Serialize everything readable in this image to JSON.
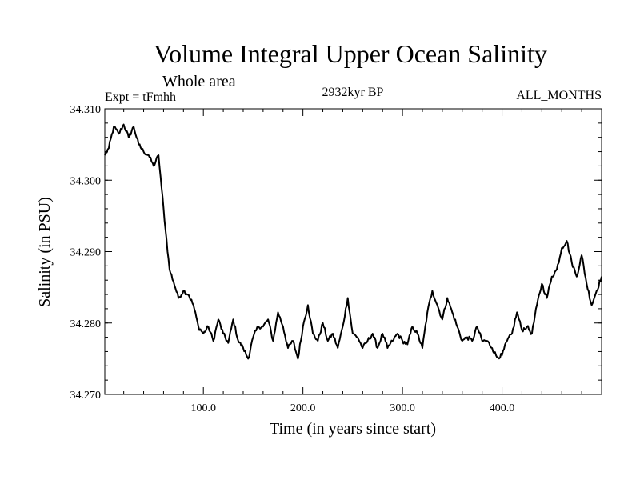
{
  "chart_data": {
    "type": "line",
    "title": "Volume Integral Upper Ocean Salinity",
    "subtitle": "Whole area",
    "experiment": "Expt = tFmhh",
    "period": "2932kyr BP",
    "months": "ALL_MONTHS",
    "xlabel": "Time (in years since start)",
    "ylabel": "Salinity (in PSU)",
    "xlim": [
      1,
      500
    ],
    "ylim": [
      34.27,
      34.31
    ],
    "x_ticks": [
      100,
      200,
      300,
      400
    ],
    "x_tick_labels": [
      "100.0",
      "200.0",
      "300.0",
      "400.0"
    ],
    "y_ticks": [
      34.27,
      34.28,
      34.29,
      34.3,
      34.31
    ],
    "y_tick_labels": [
      "34.270",
      "34.280",
      "34.290",
      "34.300",
      "34.310"
    ],
    "series": [
      {
        "name": "Salinity",
        "color": "#000000",
        "x": [
          1,
          5,
          10,
          15,
          20,
          25,
          30,
          35,
          40,
          45,
          50,
          55,
          58,
          62,
          66,
          70,
          75,
          80,
          85,
          90,
          95,
          100,
          105,
          110,
          115,
          120,
          125,
          130,
          135,
          140,
          145,
          150,
          155,
          160,
          165,
          170,
          175,
          180,
          185,
          190,
          195,
          200,
          205,
          210,
          215,
          220,
          225,
          230,
          235,
          240,
          245,
          250,
          255,
          260,
          265,
          270,
          275,
          280,
          285,
          290,
          295,
          300,
          305,
          310,
          315,
          320,
          325,
          330,
          335,
          340,
          345,
          350,
          355,
          360,
          365,
          370,
          375,
          380,
          385,
          390,
          395,
          400,
          405,
          410,
          415,
          420,
          425,
          430,
          435,
          440,
          445,
          450,
          455,
          460,
          465,
          470,
          475,
          480,
          485,
          490,
          495,
          500
        ],
        "y": [
          34.3035,
          34.3045,
          34.3075,
          34.3065,
          34.3078,
          34.306,
          34.3075,
          34.305,
          34.304,
          34.3035,
          34.302,
          34.3035,
          34.299,
          34.293,
          34.2875,
          34.2858,
          34.2835,
          34.2845,
          34.284,
          34.2825,
          34.2795,
          34.2785,
          34.2795,
          34.2775,
          34.2805,
          34.2785,
          34.2772,
          34.2805,
          34.2775,
          34.2765,
          34.275,
          34.278,
          34.2795,
          34.2795,
          34.2805,
          34.2775,
          34.2815,
          34.2795,
          34.2765,
          34.2775,
          34.275,
          34.2795,
          34.2825,
          34.2785,
          34.2775,
          34.28,
          34.2775,
          34.2785,
          34.2765,
          34.2795,
          34.2835,
          34.2785,
          34.278,
          34.2765,
          34.2775,
          34.2785,
          34.2765,
          34.2785,
          34.2765,
          34.2775,
          34.2785,
          34.2775,
          34.277,
          34.2795,
          34.2785,
          34.2765,
          34.2815,
          34.2845,
          34.2825,
          34.2805,
          34.2835,
          34.2815,
          34.2795,
          34.2775,
          34.278,
          34.2775,
          34.2795,
          34.2775,
          34.2775,
          34.2765,
          34.2752,
          34.2755,
          34.2775,
          34.2785,
          34.2815,
          34.279,
          34.2795,
          34.2785,
          34.2825,
          34.2855,
          34.2835,
          34.2865,
          34.2875,
          34.2905,
          34.2915,
          34.2885,
          34.2865,
          34.2895,
          34.2855,
          34.2825,
          34.2845,
          34.2865
        ]
      }
    ]
  }
}
